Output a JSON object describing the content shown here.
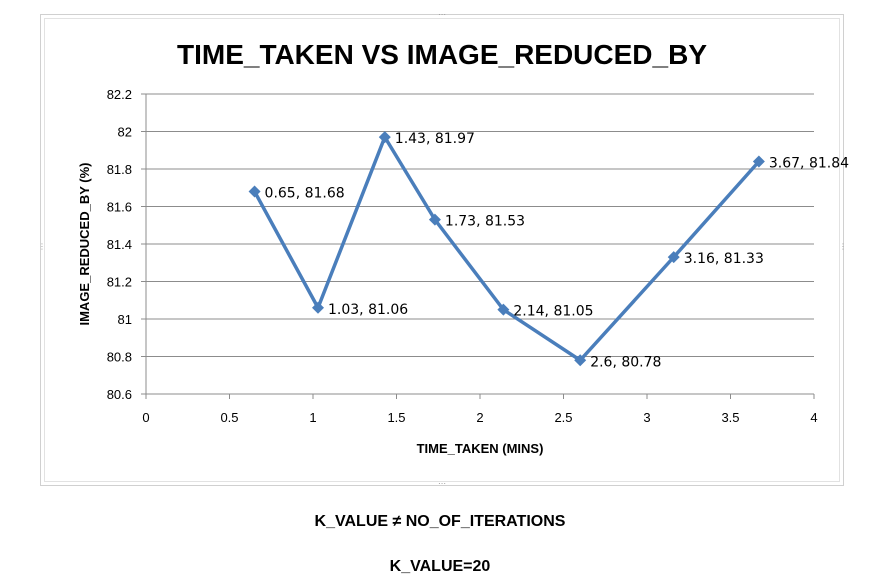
{
  "chart_data": {
    "type": "line",
    "title": "TIME_TAKEN VS IMAGE_REDUCED_BY",
    "xlabel": "TIME_TAKEN (MINS)",
    "ylabel": "IMAGE_REDUCED_BY (%)",
    "xlim": [
      0,
      4
    ],
    "ylim": [
      80.6,
      82.2
    ],
    "xticks": [
      "0",
      "0.5",
      "1",
      "1.5",
      "2",
      "2.5",
      "3",
      "3.5",
      "4"
    ],
    "yticks": [
      "80.6",
      "80.8",
      "81",
      "81.2",
      "81.4",
      "81.6",
      "81.8",
      "82",
      "82.2"
    ],
    "grid": "horizontal",
    "legend": "none",
    "series": [
      {
        "color": "#4a7ebb",
        "marker": "diamond",
        "points": [
          {
            "x": 0.65,
            "y": 81.68,
            "label": "0.65, 81.68"
          },
          {
            "x": 1.03,
            "y": 81.06,
            "label": "1.03, 81.06"
          },
          {
            "x": 1.43,
            "y": 81.97,
            "label": "1.43, 81.97"
          },
          {
            "x": 1.73,
            "y": 81.53,
            "label": "1.73, 81.53"
          },
          {
            "x": 2.14,
            "y": 81.05,
            "label": "2.14, 81.05"
          },
          {
            "x": 2.6,
            "y": 80.78,
            "label": "2.6, 80.78"
          },
          {
            "x": 3.16,
            "y": 81.33,
            "label": "3.16, 81.33"
          },
          {
            "x": 3.67,
            "y": 81.84,
            "label": "3.67, 81.84"
          }
        ]
      }
    ]
  },
  "captions": {
    "line1": "K_VALUE ≠ NO_OF_ITERATIONS",
    "line2": "K_VALUE=20"
  }
}
